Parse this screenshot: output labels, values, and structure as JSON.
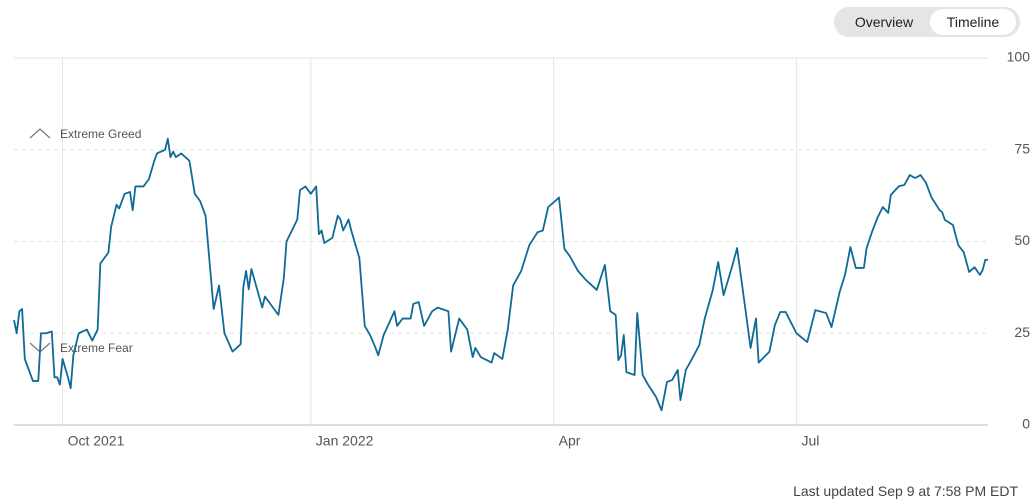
{
  "controls": [
    "Overview",
    "Timeline"
  ],
  "footer": "Last updated Sep 9 at 7:58 PM EDT",
  "chart_data": {
    "type": "line",
    "annotations": [
      "Extreme Greed",
      "Extreme Fear"
    ],
    "x": [
      0,
      1,
      2,
      3,
      4,
      7,
      9,
      10,
      12,
      14,
      15,
      16,
      17,
      18,
      20,
      21,
      22,
      24,
      27,
      29,
      31,
      32,
      35,
      36,
      38,
      39,
      41,
      43,
      44,
      45,
      48,
      50,
      52,
      53,
      56,
      57,
      58,
      59,
      60,
      62,
      65,
      67,
      69,
      71,
      74,
      76,
      78,
      81,
      84,
      85,
      86,
      87,
      88,
      92,
      93,
      95,
      98,
      100,
      101,
      105,
      106,
      108,
      110,
      112,
      113,
      114,
      115,
      118,
      120,
      121,
      122,
      124,
      125,
      128,
      130,
      132,
      134,
      135,
      137,
      141,
      142,
      144,
      147,
      148,
      150,
      152,
      155,
      157,
      161,
      162,
      165,
      168,
      170,
      171,
      173,
      177,
      178,
      181,
      183,
      185,
      188,
      191,
      194,
      196,
      198,
      201,
      202,
      204,
      206,
      209,
      212,
      216,
      219,
      221,
      223,
      224,
      225,
      226,
      227,
      230,
      231,
      233,
      235,
      238,
      240,
      242,
      244,
      246,
      247,
      249,
      250,
      252,
      254,
      256,
      259,
      261,
      263,
      266,
      268,
      271,
      273,
      275,
      276,
      280,
      282,
      284,
      286,
      290,
      294,
      297,
      301,
      303,
      306,
      308,
      310,
      312,
      315,
      316,
      318,
      320,
      322,
      324,
      325,
      328,
      330,
      332,
      334,
      336,
      338,
      340,
      343,
      344,
      345,
      348,
      350,
      352,
      354,
      356,
      358,
      359,
      360,
      361
    ],
    "values": [
      28.6,
      25,
      31,
      31.6,
      18,
      12,
      12,
      25,
      25,
      25.5,
      13,
      13,
      11,
      18,
      13,
      10,
      19,
      25,
      26,
      23,
      26,
      44,
      47,
      54,
      60,
      59,
      63,
      63.5,
      58.5,
      65,
      65,
      67,
      72,
      74,
      75,
      78,
      73,
      74.5,
      73,
      74,
      72,
      63,
      61,
      57,
      31.6,
      38,
      25,
      20,
      22,
      37.6,
      42,
      37,
      42.5,
      32,
      35,
      33,
      30,
      40,
      50,
      56,
      64,
      65,
      63,
      65,
      52,
      53,
      49.6,
      51,
      57,
      56,
      53,
      56,
      53,
      45.5,
      27,
      24.5,
      21,
      19,
      24.5,
      31,
      27,
      29,
      29,
      33,
      33.5,
      27,
      31,
      32,
      31,
      20,
      29,
      26,
      18.5,
      21,
      18.5,
      17,
      19.6,
      18,
      26,
      38,
      42,
      49,
      52.5,
      53,
      59.4,
      61.3,
      62,
      48,
      46,
      42,
      39.5,
      36.8,
      43.6,
      31,
      30,
      17.7,
      19,
      24.5,
      14.4,
      13.6,
      30.5,
      13.6,
      11,
      7.6,
      4,
      11.7,
      12.3,
      15,
      6.8,
      15,
      16.3,
      19,
      21.8,
      29,
      36.8,
      44.4,
      35.4,
      42.8,
      48.2,
      32,
      21,
      29,
      17,
      20,
      27.2,
      30.8,
      30.8,
      25,
      22.6,
      31.3,
      30.5,
      26.7,
      36.2,
      40.9,
      48.5,
      42.8,
      42.8,
      48.2,
      52.6,
      56.4,
      59.4,
      57.8,
      62.7,
      65.1,
      65.4,
      68.1,
      67.3,
      68.1,
      66,
      62.1,
      58.6,
      58,
      55.9,
      54.5,
      49,
      47.1,
      41.7,
      43,
      40.9,
      42.2,
      45,
      45
    ],
    "color": "#0f6a96",
    "xlim": [
      0,
      361
    ],
    "xticks": [
      {
        "value": 18,
        "label": "Oct 2021"
      },
      {
        "value": 110,
        "label": "Jan 2022"
      },
      {
        "value": 200,
        "label": "Apr"
      },
      {
        "value": 290,
        "label": "Jul"
      }
    ],
    "ylim": [
      0,
      100
    ],
    "yticks": [
      0,
      25,
      50,
      75,
      100
    ],
    "grid": true
  }
}
